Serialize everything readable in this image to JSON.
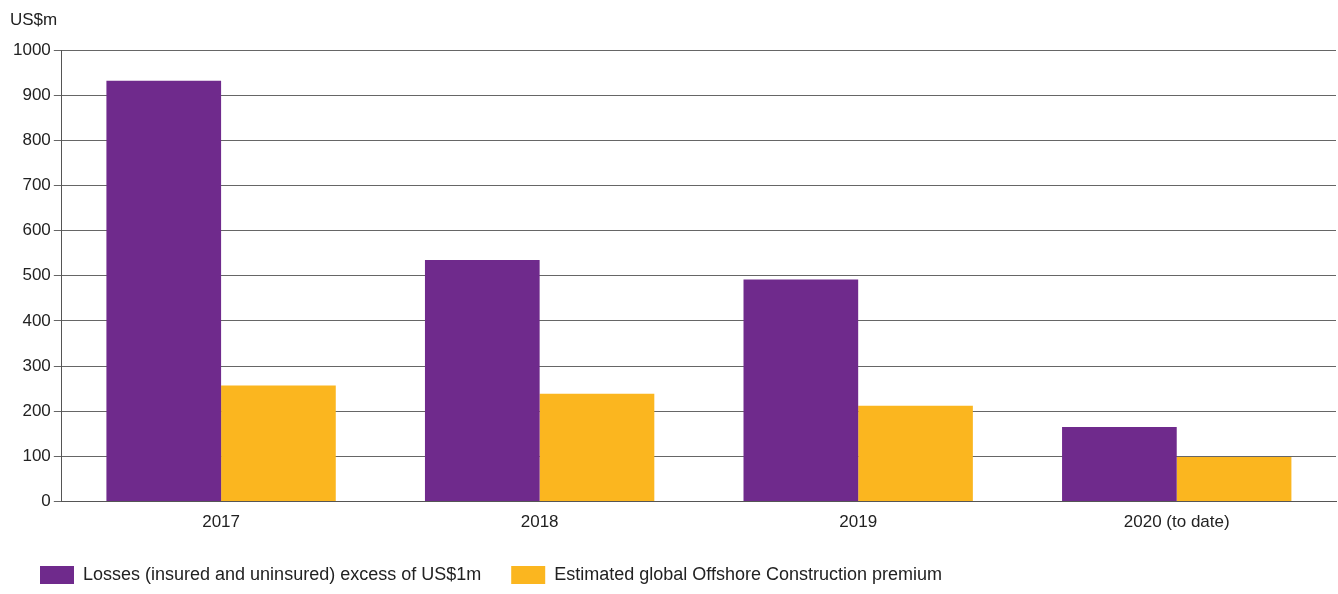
{
  "chart_data": {
    "type": "bar",
    "ylabel": "US$m",
    "categories": [
      "2017",
      "2018",
      "2019",
      "2020 (to date)"
    ],
    "series": [
      {
        "name": "Losses (insured and uninsured) excess of US$1m",
        "color": "#6f2a8c",
        "values": [
          932,
          535,
          492,
          165
        ]
      },
      {
        "name": "Estimated global Offshore Construction premium",
        "color": "#fbb61f",
        "values": [
          257,
          239,
          212,
          99
        ]
      }
    ],
    "ylim": [
      0,
      1000
    ],
    "yticks": [
      0,
      100,
      200,
      300,
      400,
      500,
      600,
      700,
      800,
      900,
      1000
    ],
    "grid": "y",
    "legend": "bottom left"
  }
}
